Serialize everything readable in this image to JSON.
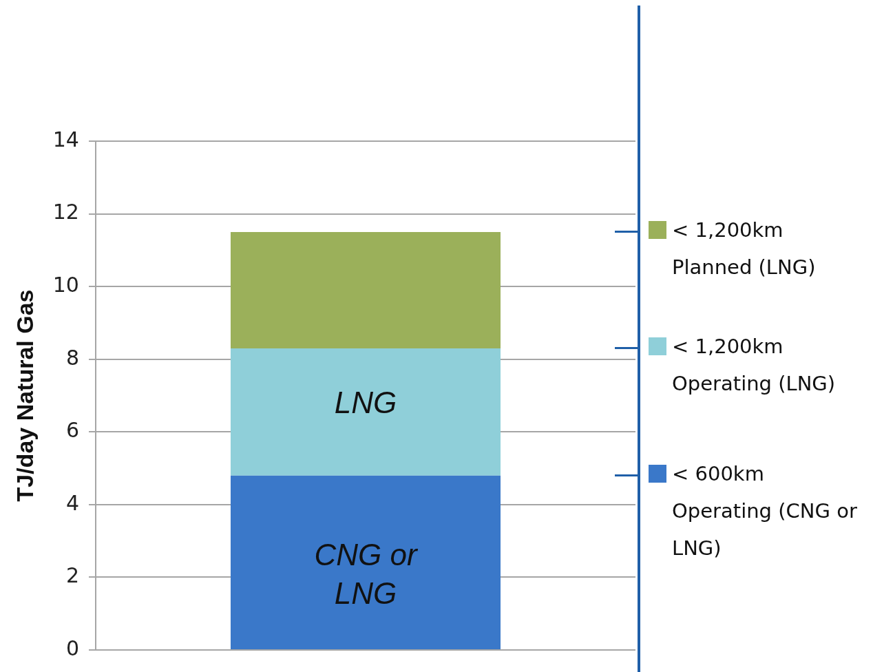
{
  "chart_data": {
    "type": "bar",
    "ylabel": "TJ/day Natural Gas",
    "categories": [
      null
    ],
    "stacked": true,
    "series": [
      {
        "name": "< 600km Operating (CNG or LNG)",
        "color": "#3a78c9",
        "values": [
          4.8
        ]
      },
      {
        "name": "< 1,200km Operating (LNG)",
        "color": "#8fcfd9",
        "values": [
          3.5
        ]
      },
      {
        "name": "< 1,200km Planned (LNG)",
        "color": "#9bb05a",
        "values": [
          3.2
        ]
      }
    ],
    "ylim": [
      0,
      14
    ],
    "yticks": [
      0,
      2,
      4,
      6,
      8,
      10,
      12,
      14
    ],
    "grid": "y",
    "legend": "right",
    "tick_labels": "y",
    "annotations": [
      "LNG",
      "CNG or LNG"
    ]
  }
}
